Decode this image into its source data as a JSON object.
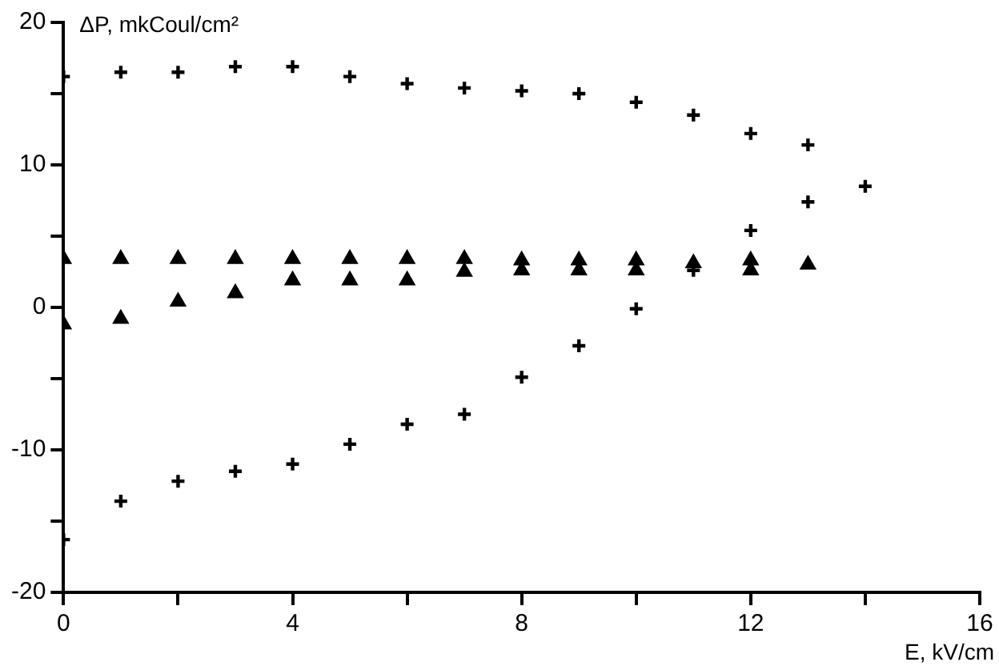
{
  "chart_data": {
    "type": "scatter",
    "xlabel": "E, kV/cm",
    "ylabel": "ΔP, mkCoul/cm²",
    "x": [
      0,
      1,
      2,
      3,
      4,
      5,
      6,
      7,
      8,
      9,
      10,
      11,
      12,
      13,
      14
    ],
    "series": [
      {
        "color": "#000000",
        "marker": "cross",
        "values": [
          16.2,
          16.5,
          16.5,
          16.9,
          16.9,
          16.2,
          15.7,
          15.4,
          15.2,
          15.0,
          14.4,
          13.5,
          12.2,
          11.4,
          8.5
        ]
      },
      {
        "color": "#000000",
        "marker": "cross",
        "values": [
          -16.3,
          -13.6,
          -12.2,
          -11.5,
          -11.0,
          -9.6,
          -8.2,
          -7.5,
          -4.9,
          -2.7,
          -0.1,
          2.6,
          5.4,
          7.4,
          null
        ]
      },
      {
        "color": "#000000",
        "marker": "triangle",
        "values": [
          3.4,
          3.4,
          3.4,
          3.4,
          3.4,
          3.4,
          3.4,
          3.4,
          3.3,
          3.3,
          3.3,
          3.1,
          3.3,
          3.0,
          null
        ]
      },
      {
        "color": "#000000",
        "marker": "triangle",
        "values": [
          -1.2,
          -0.8,
          0.4,
          1.0,
          1.9,
          1.9,
          1.9,
          2.5,
          2.6,
          2.6,
          2.6,
          null,
          2.6,
          null,
          null
        ]
      }
    ],
    "xlim": [
      0,
      16
    ],
    "xticks": [
      0,
      {
        "value": 2,
        "label": null
      },
      4,
      {
        "value": 6,
        "label": null
      },
      8,
      {
        "value": 10,
        "label": null
      },
      12,
      {
        "value": 14,
        "label": null
      },
      16
    ],
    "ylim": [
      -20,
      20
    ],
    "yticks": [
      -20,
      {
        "value": -15,
        "label": null
      },
      -10,
      {
        "value": -5,
        "label": null
      },
      0,
      {
        "value": 5,
        "label": null
      },
      10,
      {
        "value": 15,
        "label": null
      },
      20
    ],
    "grid": false,
    "legend": false
  }
}
